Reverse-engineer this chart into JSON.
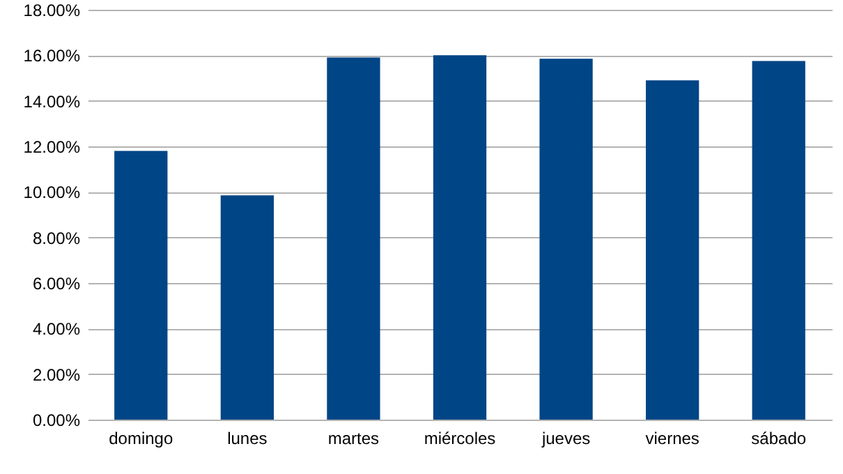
{
  "chart_data": {
    "type": "bar",
    "categories": [
      "domingo",
      "lunes",
      "martes",
      "miércoles",
      "jueves",
      "viernes",
      "sábado"
    ],
    "values": [
      11.8,
      9.85,
      15.9,
      16.0,
      15.85,
      14.9,
      15.75
    ],
    "color": "#004586",
    "ylim": [
      0,
      18
    ],
    "yticks": [
      {
        "value": 0,
        "label": "0.00%"
      },
      {
        "value": 2,
        "label": "2.00%"
      },
      {
        "value": 4,
        "label": "4.00%"
      },
      {
        "value": 6,
        "label": "6.00%"
      },
      {
        "value": 8,
        "label": "8.00%"
      },
      {
        "value": 10,
        "label": "10.00%"
      },
      {
        "value": 12,
        "label": "12.00%"
      },
      {
        "value": 14,
        "label": "14.00%"
      },
      {
        "value": 16,
        "label": "16.00%"
      },
      {
        "value": 18,
        "label": "18.00%"
      }
    ],
    "grid": "y"
  }
}
